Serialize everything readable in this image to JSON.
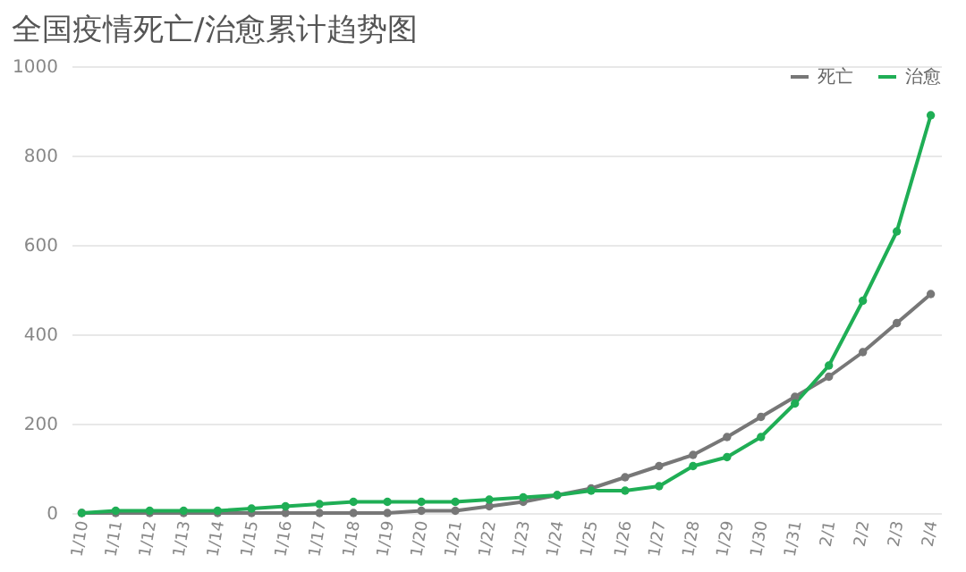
{
  "chart_data": {
    "type": "line",
    "title": "全国疫情死亡/治愈累计趋势图",
    "categories": [
      "1/10",
      "1/11",
      "1/12",
      "1/13",
      "1/14",
      "1/15",
      "1/16",
      "1/17",
      "1/18",
      "1/19",
      "1/20",
      "1/21",
      "1/22",
      "1/23",
      "1/24",
      "1/25",
      "1/26",
      "1/27",
      "1/28",
      "1/29",
      "1/30",
      "1/31",
      "2/1",
      "2/2",
      "2/3",
      "2/4"
    ],
    "series": [
      {
        "name": "死亡",
        "color": "#777777",
        "values": [
          0,
          0,
          0,
          0,
          0,
          0,
          0,
          0,
          0,
          0,
          5,
          5,
          15,
          25,
          40,
          55,
          80,
          105,
          130,
          170,
          215,
          260,
          305,
          360,
          425,
          490
        ]
      },
      {
        "name": "治愈",
        "color": "#1fae55",
        "values": [
          0,
          5,
          5,
          5,
          5,
          10,
          15,
          20,
          25,
          25,
          25,
          25,
          30,
          35,
          40,
          50,
          50,
          60,
          105,
          125,
          170,
          245,
          330,
          475,
          630,
          890
        ]
      }
    ],
    "ylim": [
      0,
      1000
    ],
    "yticks": [
      0,
      200,
      400,
      600,
      800,
      1000
    ],
    "grid": "y",
    "legend": "top right",
    "marker": "circle"
  }
}
